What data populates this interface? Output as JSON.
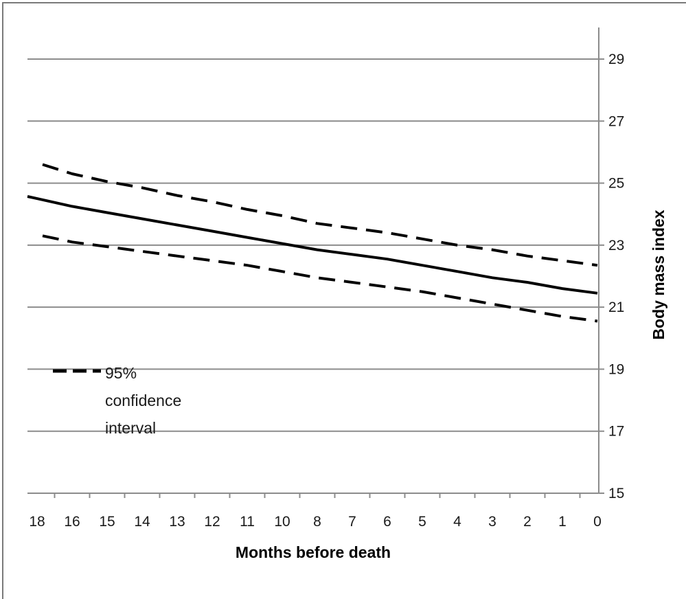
{
  "chart_data": {
    "type": "line",
    "xlabel": "Months before death",
    "ylabel": "Body mass index",
    "x_tick_labels": [
      "18",
      "16",
      "15",
      "14",
      "13",
      "12",
      "11",
      "10",
      "8",
      "7",
      "6",
      "5",
      "4",
      "3",
      "2",
      "1",
      "0"
    ],
    "ylim": [
      15,
      29
    ],
    "y_ticks": [
      15,
      17,
      19,
      21,
      23,
      25,
      27,
      29
    ],
    "y_axis_side": "right",
    "grid": true,
    "legend": {
      "position": "bottom-left",
      "label": "95% confidence interval"
    },
    "series": [
      {
        "values": [
          24.5,
          24.25,
          24.05,
          23.85,
          23.65,
          23.45,
          23.25,
          23.05,
          22.85,
          22.7,
          22.55,
          22.35,
          22.15,
          21.95,
          21.8,
          21.6,
          21.45
        ],
        "style": "solid"
      },
      {
        "name": "95% confidence interval",
        "values": [
          25.6,
          25.3,
          25.05,
          24.85,
          24.6,
          24.4,
          24.15,
          23.95,
          23.7,
          23.55,
          23.4,
          23.2,
          23.0,
          22.85,
          22.65,
          22.5,
          22.35
        ],
        "style": "dashed"
      },
      {
        "name": "95% confidence interval",
        "values": [
          23.3,
          23.1,
          22.95,
          22.8,
          22.65,
          22.5,
          22.35,
          22.15,
          21.95,
          21.8,
          21.65,
          21.5,
          21.3,
          21.1,
          20.9,
          20.7,
          20.55
        ],
        "style": "dashed"
      }
    ],
    "colors": {
      "line": "#000000",
      "grid": "#8c8c8c",
      "axis": "#8c8c8c",
      "frame": "#7a7a7a"
    }
  }
}
